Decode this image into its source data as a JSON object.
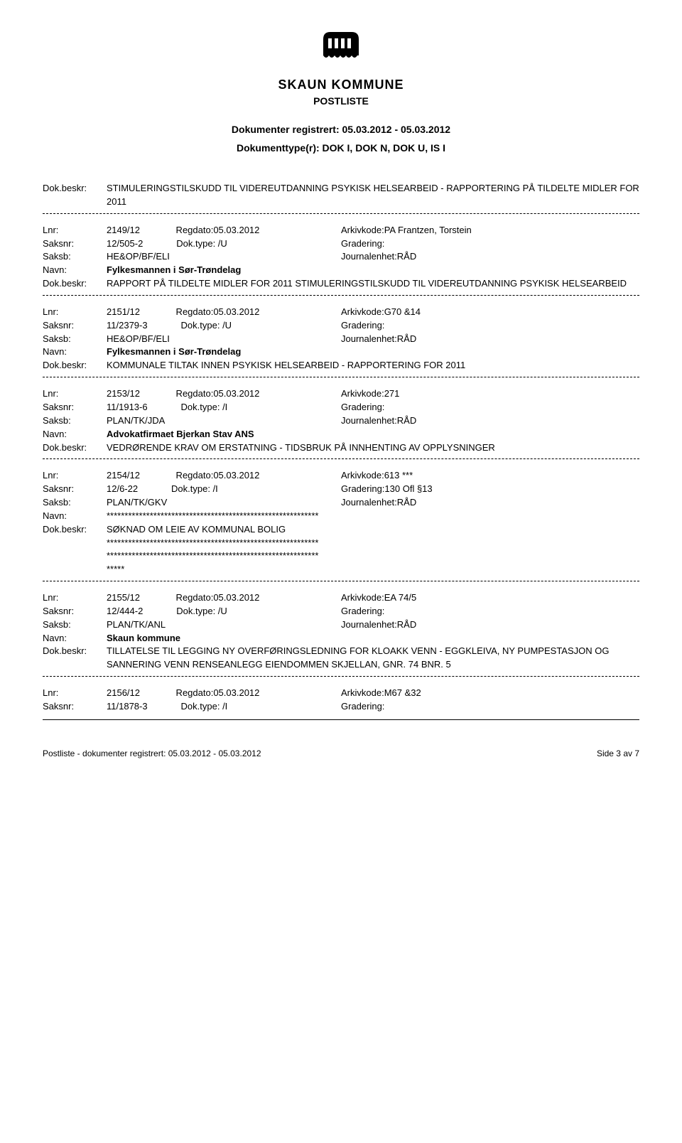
{
  "header": {
    "kommune": "SKAUN KOMMUNE",
    "postliste": "POSTLISTE",
    "registered": "Dokumenter registrert: 05.03.2012 - 05.03.2012",
    "types": "Dokumenttype(r): DOK I, DOK N, DOK U, IS I"
  },
  "entries": [
    {
      "pre_lines": [
        {
          "label": "Dok.beskr:",
          "text": "STIMULERINGSTILSKUDD TIL VIDEREUTDANNING PSYKISK HELSEARBEID - RAPPORTERING PÅ TILDELTE MIDLER FOR 2011"
        }
      ],
      "lnr": "2149/12",
      "regdato": "Regdato:05.03.2012",
      "arkiv": "Arkivkode:PA Frantzen, Torstein",
      "saksnr": "12/505-2",
      "doktype": "Dok.type: /U",
      "gradering": "Gradering:",
      "saksb": "HE&OP/BF/ELI",
      "journal": "Journalenhet:RÅD",
      "navn": "Fylkesmannen i Sør-Trøndelag",
      "beskr_label": "Dok.beskr:",
      "beskr": "RAPPORT PÅ TILDELTE MIDLER FOR 2011 STIMULERINGSTILSKUDD TIL VIDEREUTDANNING PSYKISK HELSEARBEID"
    },
    {
      "lnr": "2151/12",
      "regdato": "Regdato:05.03.2012",
      "arkiv": "Arkivkode:G70 &14",
      "saksnr": "11/2379-3",
      "doktype": "Dok.type: /U",
      "gradering": "Gradering:",
      "saksb": "HE&OP/BF/ELI",
      "journal": "Journalenhet:RÅD",
      "navn": "Fylkesmannen i Sør-Trøndelag",
      "beskr_label": "Dok.beskr:",
      "beskr": "KOMMUNALE TILTAK INNEN PSYKISK HELSEARBEID - RAPPORTERING FOR 2011"
    },
    {
      "lnr": "2153/12",
      "regdato": "Regdato:05.03.2012",
      "arkiv": "Arkivkode:271",
      "saksnr": "11/1913-6",
      "doktype": "Dok.type: /I",
      "gradering": "Gradering:",
      "saksb": "PLAN/TK/JDA",
      "journal": "Journalenhet:RÅD",
      "navn": "Advokatfirmaet Bjerkan Stav ANS",
      "beskr_label": "Dok.beskr:",
      "beskr": "VEDRØRENDE KRAV OM ERSTATNING - TIDSBRUK PÅ INNHENTING AV OPPLYSNINGER"
    },
    {
      "lnr": "2154/12",
      "regdato": "Regdato:05.03.2012",
      "arkiv": "Arkivkode:613 ***",
      "saksnr": "12/6-22",
      "doktype": "Dok.type: /I",
      "gradering": "Gradering:130 Ofl §13",
      "saksb": "PLAN/TK/GKV",
      "journal": "Journalenhet:RÅD",
      "navn_stars": "***********************************************************",
      "beskr_label": "Dok.beskr:",
      "beskr_main": "SØKNAD OM LEIE AV KOMMUNAL BOLIG",
      "beskr_stars1": "***********************************************************",
      "beskr_stars2": "***********************************************************",
      "beskr_stars3": "*****"
    },
    {
      "lnr": "2155/12",
      "regdato": "Regdato:05.03.2012",
      "arkiv": "Arkivkode:EA 74/5",
      "saksnr": "12/444-2",
      "doktype": "Dok.type: /U",
      "gradering": "Gradering:",
      "saksb": "PLAN/TK/ANL",
      "journal": "Journalenhet:RÅD",
      "navn": "Skaun kommune",
      "beskr_label": "Dok.beskr:",
      "beskr": "TILLATELSE TIL LEGGING NY OVERFØRINGSLEDNING FOR KLOAKK VENN - EGGKLEIVA, NY PUMPESTASJON OG SANNERING VENN RENSEANLEGG EIENDOMMEN SKJELLAN, GNR. 74 BNR. 5"
    },
    {
      "lnr": "2156/12",
      "regdato": "Regdato:05.03.2012",
      "arkiv": "Arkivkode:M67 &32",
      "saksnr": "11/1878-3",
      "doktype": "Dok.type: /I",
      "gradering": "Gradering:",
      "no_lower": true
    }
  ],
  "labels": {
    "lnr": "Lnr:",
    "saksnr": "Saksnr:",
    "saksb": "Saksb:",
    "navn": "Navn:",
    "beskr": "Dok.beskr:"
  },
  "footer": {
    "left": "Postliste - dokumenter registrert: 05.03.2012 - 05.03.2012",
    "right": "Side 3 av 7"
  }
}
